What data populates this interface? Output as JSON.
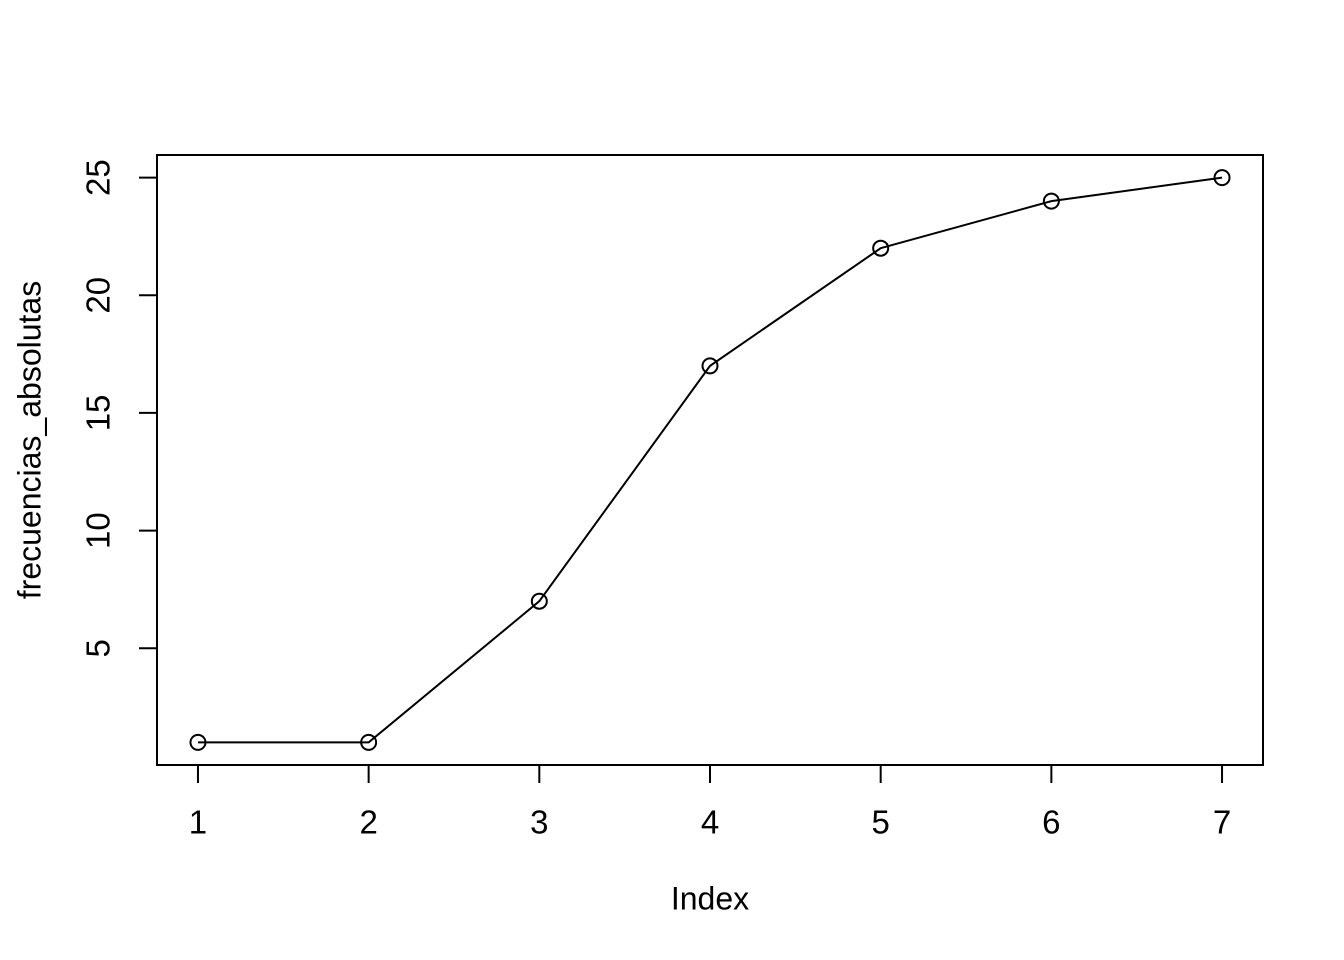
{
  "figure": {
    "background": "#ffffff",
    "foreground": "#000000"
  },
  "chart_data": {
    "type": "line",
    "x": [
      1,
      2,
      3,
      4,
      5,
      6,
      7
    ],
    "values": [
      1,
      1,
      7,
      17,
      22,
      24,
      25
    ],
    "series": [
      {
        "name": "frecuencias_absolutas",
        "values": [
          1,
          1,
          7,
          17,
          22,
          24,
          25
        ]
      }
    ],
    "title": "",
    "xlabel": "Index",
    "ylabel": "frecuencias_absolutas",
    "x_ticks": [
      1,
      2,
      3,
      4,
      5,
      6,
      7
    ],
    "y_ticks": [
      5,
      10,
      15,
      20,
      25
    ],
    "xlim": [
      0.76,
      7.24
    ],
    "ylim": [
      0.04,
      25.96
    ],
    "grid": false,
    "legend": "none",
    "marker": "open-circle",
    "line_color": "#000000",
    "axis_color": "#000000",
    "background": "#ffffff"
  }
}
